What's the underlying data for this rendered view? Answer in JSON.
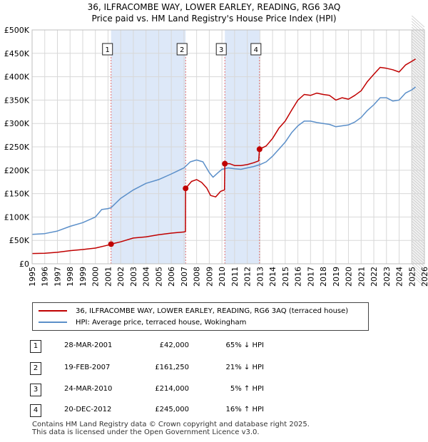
{
  "title_line1": "36, ILFRACOMBE WAY, LOWER EARLEY, READING, RG6 3AQ",
  "title_line2": "Price paid vs. HM Land Registry's House Price Index (HPI)",
  "legend": {
    "property": "36, ILFRACOMBE WAY, LOWER EARLEY, READING, RG6 3AQ (terraced house)",
    "hpi": "HPI: Average price, terraced house, Wokingham"
  },
  "colors": {
    "property": "#c00000",
    "hpi": "#5b8fc9",
    "shade": "#dde8f8",
    "grid": "#d8d8d8"
  },
  "sales": [
    {
      "num": "1",
      "date": "28-MAR-2001",
      "price": "£42,000",
      "hpi": "65% ↓ HPI"
    },
    {
      "num": "2",
      "date": "19-FEB-2007",
      "price": "£161,250",
      "hpi": "21% ↓ HPI"
    },
    {
      "num": "3",
      "date": "24-MAR-2010",
      "price": "£214,000",
      "hpi": "5% ↑ HPI"
    },
    {
      "num": "4",
      "date": "20-DEC-2012",
      "price": "£245,000",
      "hpi": "16% ↑ HPI"
    }
  ],
  "footer_line1": "Contains HM Land Registry data © Crown copyright and database right 2025.",
  "footer_line2": "This data is licensed under the Open Government Licence v3.0.",
  "chart_data": {
    "type": "line",
    "xlim": [
      1995,
      2026
    ],
    "ylim": [
      0,
      500000
    ],
    "x_ticks": [
      1995,
      1996,
      1997,
      1998,
      1999,
      2000,
      2001,
      2002,
      2003,
      2004,
      2005,
      2006,
      2007,
      2008,
      2009,
      2010,
      2011,
      2012,
      2013,
      2014,
      2015,
      2016,
      2017,
      2018,
      2019,
      2020,
      2021,
      2022,
      2023,
      2024,
      2025,
      2026
    ],
    "y_ticks": [
      {
        "value": 0,
        "label": "£0"
      },
      {
        "value": 50000,
        "label": "£50K"
      },
      {
        "value": 100000,
        "label": "£100K"
      },
      {
        "value": 150000,
        "label": "£150K"
      },
      {
        "value": 200000,
        "label": "£200K"
      },
      {
        "value": 250000,
        "label": "£250K"
      },
      {
        "value": 300000,
        "label": "£300K"
      },
      {
        "value": 350000,
        "label": "£350K"
      },
      {
        "value": 400000,
        "label": "£400K"
      },
      {
        "value": 450000,
        "label": "£450K"
      },
      {
        "value": 500000,
        "label": "£500K"
      }
    ],
    "shaded_ranges": [
      [
        2001.24,
        2007.13
      ],
      [
        2010.23,
        2012.97
      ]
    ],
    "projection_start": 2025.0,
    "sale_markers": [
      {
        "label": "1",
        "x": 2001.24,
        "y": 42000
      },
      {
        "label": "2",
        "x": 2007.13,
        "y": 161250
      },
      {
        "label": "3",
        "x": 2010.23,
        "y": 214000
      },
      {
        "label": "4",
        "x": 2012.97,
        "y": 245000
      }
    ],
    "series": [
      {
        "name": "36, ILFRACOMBE WAY, LOWER EARLEY, READING, RG6 3AQ (terraced house)",
        "color": "#c00000",
        "points": [
          [
            1995.0,
            22000
          ],
          [
            1996.0,
            22500
          ],
          [
            1997.0,
            24500
          ],
          [
            1998.0,
            28000
          ],
          [
            1999.0,
            30500
          ],
          [
            2000.0,
            33500
          ],
          [
            2001.0,
            40000
          ],
          [
            2001.24,
            42000
          ],
          [
            2002.0,
            47000
          ],
          [
            2003.0,
            55000
          ],
          [
            2004.0,
            57500
          ],
          [
            2005.0,
            62000
          ],
          [
            2006.0,
            65500
          ],
          [
            2007.0,
            68000
          ],
          [
            2007.12,
            69000
          ],
          [
            2007.13,
            161250
          ],
          [
            2007.6,
            176000
          ],
          [
            2008.0,
            180000
          ],
          [
            2008.4,
            174000
          ],
          [
            2008.8,
            162000
          ],
          [
            2009.1,
            146000
          ],
          [
            2009.5,
            143000
          ],
          [
            2009.9,
            155000
          ],
          [
            2010.2,
            158000
          ],
          [
            2010.23,
            214000
          ],
          [
            2010.6,
            214000
          ],
          [
            2011.0,
            210000
          ],
          [
            2011.5,
            210000
          ],
          [
            2012.0,
            212000
          ],
          [
            2012.5,
            216000
          ],
          [
            2012.9,
            220000
          ],
          [
            2012.97,
            245000
          ],
          [
            2013.5,
            252000
          ],
          [
            2014.0,
            268000
          ],
          [
            2014.5,
            290000
          ],
          [
            2015.0,
            305000
          ],
          [
            2015.5,
            328000
          ],
          [
            2016.0,
            350000
          ],
          [
            2016.5,
            362000
          ],
          [
            2017.0,
            360000
          ],
          [
            2017.5,
            365000
          ],
          [
            2018.0,
            362000
          ],
          [
            2018.5,
            360000
          ],
          [
            2019.0,
            350000
          ],
          [
            2019.5,
            355000
          ],
          [
            2020.0,
            352000
          ],
          [
            2020.5,
            360000
          ],
          [
            2021.0,
            370000
          ],
          [
            2021.5,
            390000
          ],
          [
            2022.0,
            405000
          ],
          [
            2022.5,
            420000
          ],
          [
            2023.0,
            418000
          ],
          [
            2023.5,
            415000
          ],
          [
            2024.0,
            410000
          ],
          [
            2024.5,
            425000
          ],
          [
            2025.0,
            433000
          ],
          [
            2025.3,
            438000
          ]
        ]
      },
      {
        "name": "HPI: Average price, terraced house, Wokingham",
        "color": "#5b8fc9",
        "points": [
          [
            1995.0,
            63000
          ],
          [
            1996.0,
            64500
          ],
          [
            1997.0,
            70000
          ],
          [
            1998.0,
            80000
          ],
          [
            1999.0,
            88000
          ],
          [
            2000.0,
            100000
          ],
          [
            2000.5,
            116000
          ],
          [
            2001.0,
            118000
          ],
          [
            2001.24,
            120000
          ],
          [
            2002.0,
            140000
          ],
          [
            2003.0,
            158000
          ],
          [
            2004.0,
            172000
          ],
          [
            2005.0,
            180000
          ],
          [
            2006.0,
            192000
          ],
          [
            2007.0,
            205000
          ],
          [
            2007.5,
            218000
          ],
          [
            2008.0,
            222000
          ],
          [
            2008.5,
            218000
          ],
          [
            2009.0,
            195000
          ],
          [
            2009.3,
            185000
          ],
          [
            2009.7,
            195000
          ],
          [
            2010.0,
            202000
          ],
          [
            2010.5,
            205000
          ],
          [
            2011.0,
            203000
          ],
          [
            2011.5,
            202000
          ],
          [
            2012.0,
            205000
          ],
          [
            2012.5,
            208000
          ],
          [
            2013.0,
            212000
          ],
          [
            2013.5,
            218000
          ],
          [
            2014.0,
            230000
          ],
          [
            2014.5,
            245000
          ],
          [
            2015.0,
            260000
          ],
          [
            2015.5,
            280000
          ],
          [
            2016.0,
            295000
          ],
          [
            2016.5,
            305000
          ],
          [
            2017.0,
            305000
          ],
          [
            2017.5,
            302000
          ],
          [
            2018.0,
            300000
          ],
          [
            2018.5,
            298000
          ],
          [
            2019.0,
            293000
          ],
          [
            2019.5,
            295000
          ],
          [
            2020.0,
            297000
          ],
          [
            2020.5,
            303000
          ],
          [
            2021.0,
            313000
          ],
          [
            2021.5,
            328000
          ],
          [
            2022.0,
            340000
          ],
          [
            2022.5,
            355000
          ],
          [
            2023.0,
            355000
          ],
          [
            2023.5,
            348000
          ],
          [
            2024.0,
            350000
          ],
          [
            2024.5,
            365000
          ],
          [
            2025.0,
            372000
          ],
          [
            2025.3,
            378000
          ]
        ]
      }
    ]
  }
}
